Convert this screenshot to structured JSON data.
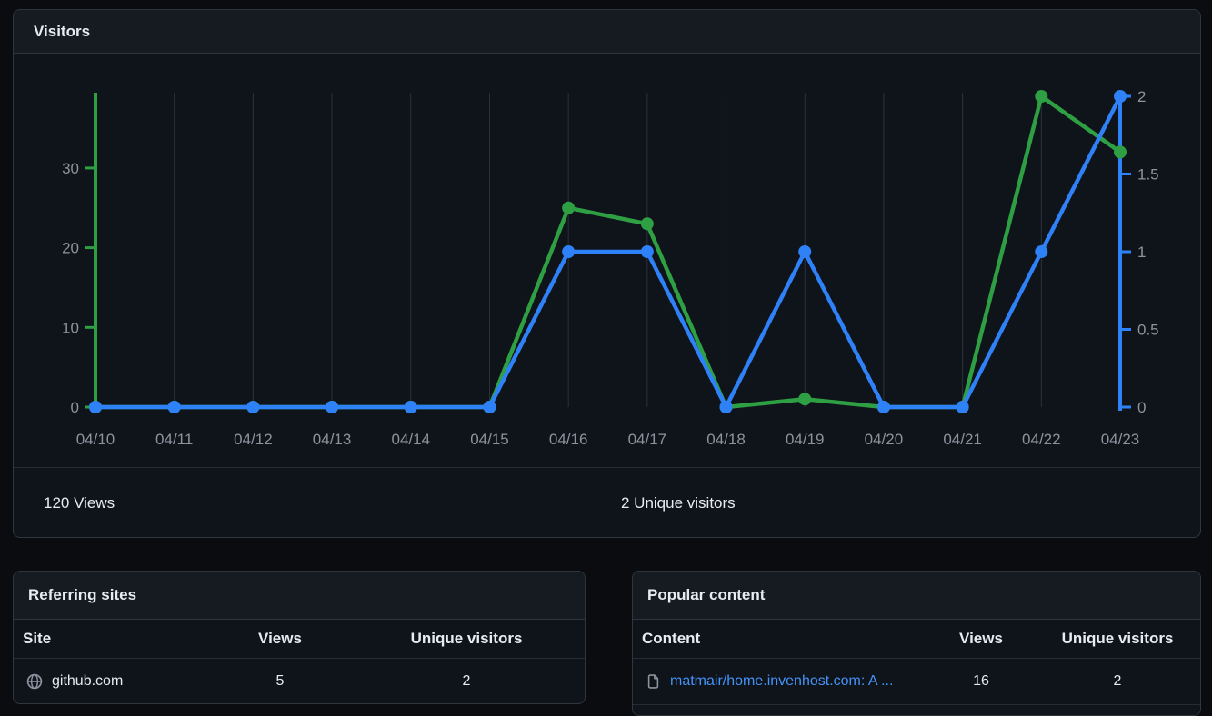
{
  "colors": {
    "views_green": "#2ea043",
    "unique_blue": "#2f81f7",
    "grid": "#2c323a",
    "tick_text": "#8b949e",
    "link_blue": "#4493f8",
    "icon_gray": "#8b949e"
  },
  "visitors_panel": {
    "title": "Visitors",
    "footer": {
      "views_total": "120 Views",
      "unique_total": "2 Unique visitors"
    }
  },
  "chart_data": {
    "type": "line",
    "title": "Visitors",
    "categories": [
      "04/10",
      "04/11",
      "04/12",
      "04/13",
      "04/14",
      "04/15",
      "04/16",
      "04/17",
      "04/18",
      "04/19",
      "04/20",
      "04/21",
      "04/22",
      "04/23"
    ],
    "series": [
      {
        "name": "Views",
        "axis": "left",
        "color_key": "views_green",
        "values": [
          0,
          0,
          0,
          0,
          0,
          0,
          25,
          23,
          0,
          1,
          0,
          0,
          39,
          32
        ]
      },
      {
        "name": "Unique visitors",
        "axis": "right",
        "color_key": "unique_blue",
        "values": [
          0,
          0,
          0,
          0,
          0,
          0,
          1,
          1,
          0,
          1,
          0,
          0,
          1,
          2
        ]
      }
    ],
    "left_axis": {
      "ticks": [
        0,
        10,
        20,
        30
      ],
      "max": 39
    },
    "right_axis": {
      "ticks": [
        0,
        0.5,
        1,
        1.5,
        2
      ],
      "max": 2
    },
    "grid": "vertical",
    "legend": "none"
  },
  "referring_sites": {
    "title": "Referring sites",
    "columns": [
      "Site",
      "Views",
      "Unique visitors"
    ],
    "rows": [
      {
        "site": "github.com",
        "views": "5",
        "unique_visitors": "2"
      }
    ]
  },
  "popular_content": {
    "title": "Popular content",
    "columns": [
      "Content",
      "Views",
      "Unique visitors"
    ],
    "rows": [
      {
        "content": "matmair/home.invenhost.com: A ...",
        "views": "16",
        "unique_visitors": "2"
      }
    ]
  }
}
